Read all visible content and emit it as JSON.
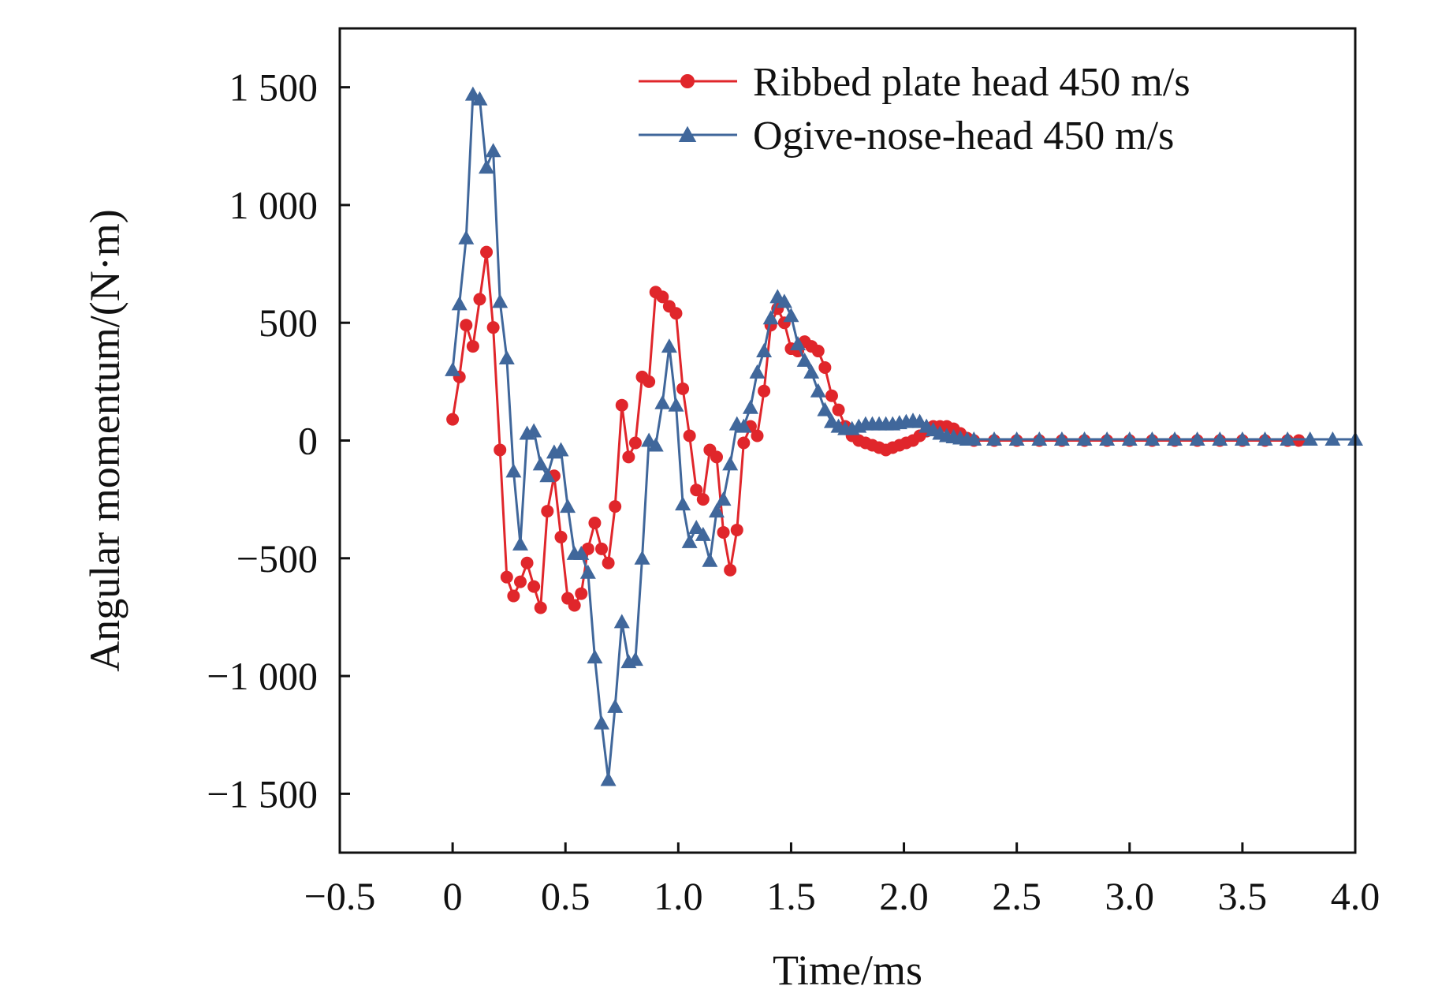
{
  "chart_data": {
    "type": "line",
    "title": "",
    "xlabel": "Time/ms",
    "ylabel": "Angular momentum/(N·m)",
    "xlim": [
      -0.5,
      4.0
    ],
    "ylim": [
      -1750,
      1750
    ],
    "grid": false,
    "legend_position": "top-right",
    "x_ticks": [
      {
        "value": -0.5,
        "label": "−0.5"
      },
      {
        "value": 0,
        "label": "0"
      },
      {
        "value": 0.5,
        "label": "0.5"
      },
      {
        "value": 1.0,
        "label": "1.0"
      },
      {
        "value": 1.5,
        "label": "1.5"
      },
      {
        "value": 2.0,
        "label": "2.0"
      },
      {
        "value": 2.5,
        "label": "2.5"
      },
      {
        "value": 3.0,
        "label": "3.0"
      },
      {
        "value": 3.5,
        "label": "3.5"
      },
      {
        "value": 4.0,
        "label": "4.0"
      }
    ],
    "y_ticks": [
      {
        "value": 1500,
        "label": "1 500"
      },
      {
        "value": 1000,
        "label": "1 000"
      },
      {
        "value": 500,
        "label": "500"
      },
      {
        "value": 0,
        "label": "0"
      },
      {
        "value": -500,
        "label": "−500"
      },
      {
        "value": -1000,
        "label": "−1 000"
      },
      {
        "value": -1500,
        "label": "−1 500"
      }
    ],
    "series": [
      {
        "name": "Ribbed plate head 450 m/s",
        "color": "#e0262b",
        "marker": "circle",
        "points": [
          [
            0.0,
            90
          ],
          [
            0.03,
            270
          ],
          [
            0.06,
            490
          ],
          [
            0.09,
            400
          ],
          [
            0.12,
            600
          ],
          [
            0.15,
            800
          ],
          [
            0.18,
            480
          ],
          [
            0.21,
            -40
          ],
          [
            0.24,
            -580
          ],
          [
            0.27,
            -660
          ],
          [
            0.3,
            -600
          ],
          [
            0.33,
            -520
          ],
          [
            0.36,
            -620
          ],
          [
            0.39,
            -710
          ],
          [
            0.42,
            -300
          ],
          [
            0.45,
            -150
          ],
          [
            0.48,
            -410
          ],
          [
            0.51,
            -670
          ],
          [
            0.54,
            -700
          ],
          [
            0.57,
            -650
          ],
          [
            0.6,
            -460
          ],
          [
            0.63,
            -350
          ],
          [
            0.66,
            -460
          ],
          [
            0.69,
            -520
          ],
          [
            0.72,
            -280
          ],
          [
            0.75,
            150
          ],
          [
            0.78,
            -70
          ],
          [
            0.81,
            -10
          ],
          [
            0.84,
            270
          ],
          [
            0.87,
            250
          ],
          [
            0.9,
            630
          ],
          [
            0.93,
            610
          ],
          [
            0.96,
            570
          ],
          [
            0.99,
            540
          ],
          [
            1.02,
            220
          ],
          [
            1.05,
            20
          ],
          [
            1.08,
            -210
          ],
          [
            1.11,
            -250
          ],
          [
            1.14,
            -40
          ],
          [
            1.17,
            -70
          ],
          [
            1.2,
            -390
          ],
          [
            1.23,
            -550
          ],
          [
            1.26,
            -380
          ],
          [
            1.29,
            -10
          ],
          [
            1.32,
            60
          ],
          [
            1.35,
            20
          ],
          [
            1.38,
            210
          ],
          [
            1.41,
            490
          ],
          [
            1.44,
            560
          ],
          [
            1.47,
            500
          ],
          [
            1.5,
            390
          ],
          [
            1.53,
            380
          ],
          [
            1.56,
            420
          ],
          [
            1.59,
            400
          ],
          [
            1.62,
            380
          ],
          [
            1.65,
            310
          ],
          [
            1.68,
            190
          ],
          [
            1.71,
            130
          ],
          [
            1.74,
            60
          ],
          [
            1.77,
            20
          ],
          [
            1.8,
            0
          ],
          [
            1.83,
            -10
          ],
          [
            1.86,
            -20
          ],
          [
            1.89,
            -30
          ],
          [
            1.92,
            -40
          ],
          [
            1.95,
            -30
          ],
          [
            1.98,
            -20
          ],
          [
            2.01,
            -10
          ],
          [
            2.04,
            0
          ],
          [
            2.07,
            20
          ],
          [
            2.1,
            40
          ],
          [
            2.13,
            60
          ],
          [
            2.16,
            60
          ],
          [
            2.19,
            60
          ],
          [
            2.22,
            50
          ],
          [
            2.25,
            30
          ],
          [
            2.28,
            10
          ],
          [
            2.31,
            0
          ],
          [
            2.4,
            0
          ],
          [
            2.5,
            0
          ],
          [
            2.6,
            0
          ],
          [
            2.7,
            0
          ],
          [
            2.8,
            0
          ],
          [
            2.9,
            0
          ],
          [
            3.0,
            0
          ],
          [
            3.1,
            0
          ],
          [
            3.2,
            0
          ],
          [
            3.3,
            0
          ],
          [
            3.4,
            0
          ],
          [
            3.5,
            0
          ],
          [
            3.6,
            0
          ],
          [
            3.7,
            0
          ],
          [
            3.75,
            0
          ]
        ]
      },
      {
        "name": "Ogive-nose-head 450 m/s",
        "color": "#40679b",
        "marker": "triangle",
        "points": [
          [
            0.0,
            300
          ],
          [
            0.03,
            580
          ],
          [
            0.06,
            860
          ],
          [
            0.09,
            1470
          ],
          [
            0.12,
            1450
          ],
          [
            0.15,
            1160
          ],
          [
            0.18,
            1230
          ],
          [
            0.21,
            590
          ],
          [
            0.24,
            350
          ],
          [
            0.27,
            -130
          ],
          [
            0.3,
            -440
          ],
          [
            0.33,
            30
          ],
          [
            0.36,
            40
          ],
          [
            0.39,
            -100
          ],
          [
            0.42,
            -150
          ],
          [
            0.45,
            -50
          ],
          [
            0.48,
            -40
          ],
          [
            0.51,
            -280
          ],
          [
            0.54,
            -480
          ],
          [
            0.57,
            -480
          ],
          [
            0.6,
            -560
          ],
          [
            0.63,
            -920
          ],
          [
            0.66,
            -1200
          ],
          [
            0.69,
            -1440
          ],
          [
            0.72,
            -1130
          ],
          [
            0.75,
            -770
          ],
          [
            0.78,
            -940
          ],
          [
            0.81,
            -930
          ],
          [
            0.84,
            -500
          ],
          [
            0.87,
            0
          ],
          [
            0.9,
            -20
          ],
          [
            0.93,
            160
          ],
          [
            0.96,
            400
          ],
          [
            0.99,
            150
          ],
          [
            1.02,
            -270
          ],
          [
            1.05,
            -430
          ],
          [
            1.08,
            -370
          ],
          [
            1.11,
            -400
          ],
          [
            1.14,
            -510
          ],
          [
            1.17,
            -300
          ],
          [
            1.2,
            -250
          ],
          [
            1.23,
            -100
          ],
          [
            1.26,
            70
          ],
          [
            1.29,
            60
          ],
          [
            1.32,
            140
          ],
          [
            1.35,
            290
          ],
          [
            1.38,
            380
          ],
          [
            1.41,
            520
          ],
          [
            1.44,
            610
          ],
          [
            1.47,
            590
          ],
          [
            1.5,
            530
          ],
          [
            1.53,
            410
          ],
          [
            1.56,
            340
          ],
          [
            1.59,
            290
          ],
          [
            1.62,
            210
          ],
          [
            1.65,
            130
          ],
          [
            1.68,
            80
          ],
          [
            1.71,
            60
          ],
          [
            1.74,
            50
          ],
          [
            1.77,
            50
          ],
          [
            1.8,
            60
          ],
          [
            1.83,
            70
          ],
          [
            1.86,
            70
          ],
          [
            1.89,
            70
          ],
          [
            1.92,
            70
          ],
          [
            1.95,
            70
          ],
          [
            1.98,
            75
          ],
          [
            2.01,
            80
          ],
          [
            2.04,
            85
          ],
          [
            2.07,
            80
          ],
          [
            2.1,
            60
          ],
          [
            2.13,
            45
          ],
          [
            2.16,
            30
          ],
          [
            2.19,
            20
          ],
          [
            2.22,
            15
          ],
          [
            2.25,
            10
          ],
          [
            2.28,
            5
          ],
          [
            2.31,
            5
          ],
          [
            2.4,
            5
          ],
          [
            2.5,
            5
          ],
          [
            2.6,
            5
          ],
          [
            2.7,
            5
          ],
          [
            2.8,
            5
          ],
          [
            2.9,
            5
          ],
          [
            3.0,
            5
          ],
          [
            3.1,
            5
          ],
          [
            3.2,
            5
          ],
          [
            3.3,
            5
          ],
          [
            3.4,
            5
          ],
          [
            3.5,
            5
          ],
          [
            3.6,
            5
          ],
          [
            3.7,
            5
          ],
          [
            3.8,
            5
          ],
          [
            3.9,
            5
          ],
          [
            4.0,
            5
          ]
        ]
      }
    ]
  }
}
